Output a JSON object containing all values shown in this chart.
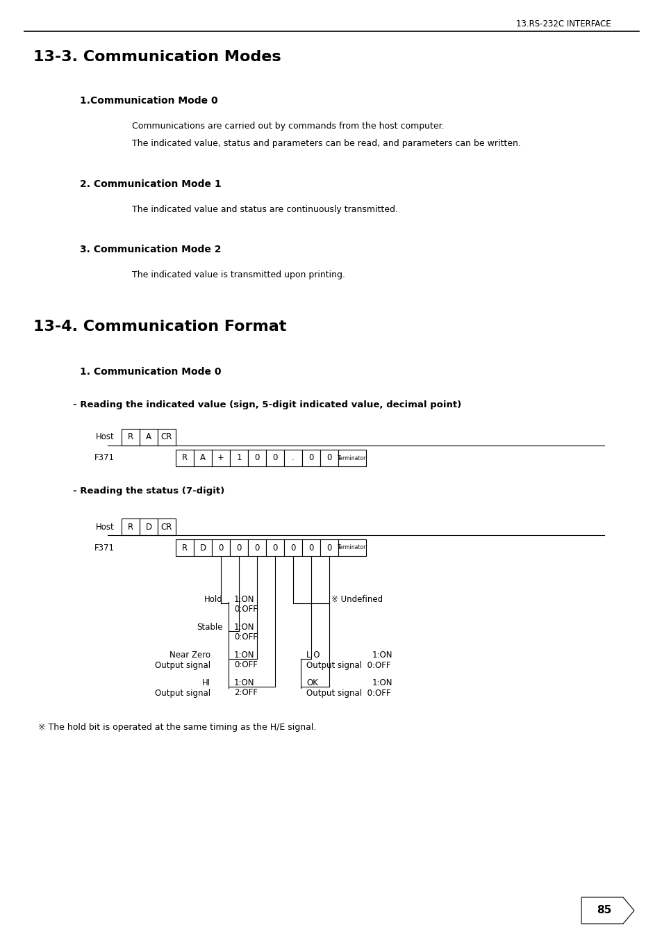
{
  "bg_color": "#ffffff",
  "header_text": "13.RS-232C INTERFACE",
  "section1_title": "13-3. Communication Modes",
  "sub1_title": "1.Communication Mode 0",
  "sub1_line1": "Communications are carried out by commands from the host computer.",
  "sub1_line2": "The indicated value, status and parameters can be read, and parameters can be written.",
  "sub2_title": "2. Communication Mode 1",
  "sub2_line1": "The indicated value and status are continuously transmitted.",
  "sub3_title": "3. Communication Mode 2",
  "sub3_line1": "The indicated value is transmitted upon printing.",
  "section2_title": "13-4. Communication Format",
  "cf_sub1_title": "1. Communication Mode 0",
  "reading1_title": "- Reading the indicated value (sign, 5-digit indicated value, decimal point)",
  "host1_label": "Host",
  "host1_cells": [
    "R",
    "A",
    "CR"
  ],
  "f371_1_label": "F371",
  "f371_1_cells": [
    "R",
    "A",
    "+",
    "1",
    "0",
    "0",
    ".",
    "0",
    "0",
    "Terminator"
  ],
  "reading2_title": "- Reading the status (7-digit)",
  "host2_label": "Host",
  "host2_cells": [
    "R",
    "D",
    "CR"
  ],
  "f371_2_label": "F371",
  "f371_2_cells": [
    "R",
    "D",
    "0",
    "0",
    "0",
    "0",
    "0",
    "0",
    "0",
    "Terminator"
  ],
  "footnote": "※ The hold bit is operated at the same timing as the H/E signal.",
  "page_number": "85"
}
